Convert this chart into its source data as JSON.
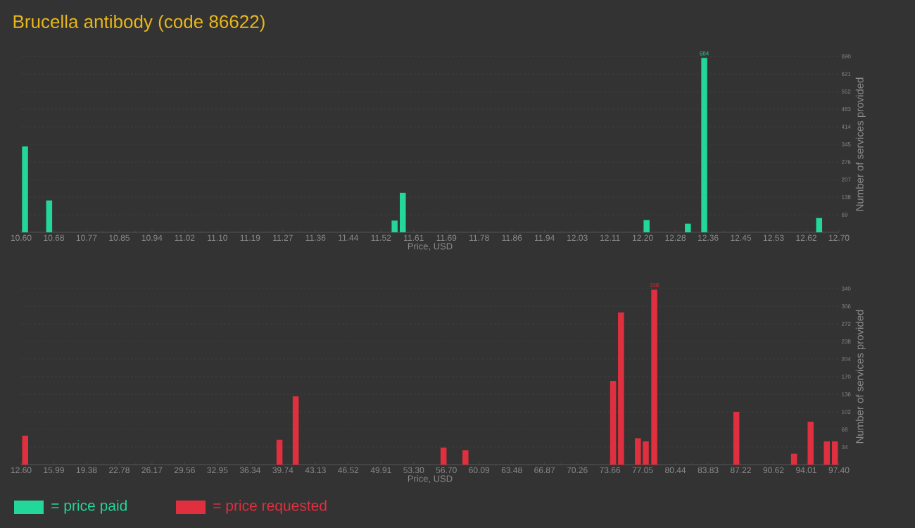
{
  "chart_data": [
    {
      "type": "bar",
      "title": "Brucella antibody (code 86622)",
      "xlabel": "Price, USD",
      "ylabel": "Number of services provided",
      "x": [
        10.61,
        10.672,
        11.559,
        11.58,
        12.206,
        12.312,
        12.354,
        12.649
      ],
      "series": [
        {
          "name": "= price paid",
          "color": "#23d69a",
          "values": [
            337,
            125,
            46,
            155,
            48,
            34,
            684,
            56
          ],
          "value_labels": [
            null,
            null,
            null,
            null,
            null,
            null,
            "684",
            null
          ]
        }
      ],
      "xlim": [
        10.6,
        12.7
      ],
      "xticks": [
        {
          "value": 10.6,
          "label": "10.60"
        },
        {
          "value": 10.684,
          "label": "10.68"
        },
        {
          "value": 10.768,
          "label": "10.77"
        },
        {
          "value": 10.852,
          "label": "10.85"
        },
        {
          "value": 10.936,
          "label": "10.94"
        },
        {
          "value": 11.02,
          "label": "11.02"
        },
        {
          "value": 11.104,
          "label": "11.10"
        },
        {
          "value": 11.188,
          "label": "11.19"
        },
        {
          "value": 11.272,
          "label": "11.27"
        },
        {
          "value": 11.356,
          "label": "11.36"
        },
        {
          "value": 11.44,
          "label": "11.44"
        },
        {
          "value": 11.524,
          "label": "11.52"
        },
        {
          "value": 11.608,
          "label": "11.61"
        },
        {
          "value": 11.692,
          "label": "11.69"
        },
        {
          "value": 11.776,
          "label": "11.78"
        },
        {
          "value": 11.86,
          "label": "11.86"
        },
        {
          "value": 11.944,
          "label": "11.94"
        },
        {
          "value": 12.028,
          "label": "12.03"
        },
        {
          "value": 12.112,
          "label": "12.11"
        },
        {
          "value": 12.196,
          "label": "12.20"
        },
        {
          "value": 12.28,
          "label": "12.28"
        },
        {
          "value": 12.364,
          "label": "12.36"
        },
        {
          "value": 12.448,
          "label": "12.45"
        },
        {
          "value": 12.532,
          "label": "12.53"
        },
        {
          "value": 12.616,
          "label": "12.62"
        },
        {
          "value": 12.7,
          "label": "12.70"
        }
      ],
      "ylim": [
        0,
        690
      ],
      "yticks": [
        69,
        138,
        207,
        276,
        345,
        414,
        483,
        552,
        621,
        690
      ],
      "grid": "y",
      "legend": "bottom left"
    },
    {
      "type": "bar",
      "xlabel": "Price, USD",
      "ylabel": "Number of services provided",
      "x": [
        13.02,
        39.39,
        41.07,
        56.4,
        58.67,
        73.98,
        74.8,
        76.55,
        77.37,
        78.25,
        86.76,
        92.74,
        94.46,
        96.14,
        96.98
      ],
      "series": [
        {
          "name": "= price requested",
          "color": "#e0303f",
          "values": [
            56,
            48,
            132,
            33,
            28,
            162,
            294,
            51,
            45,
            338,
            102,
            21,
            83,
            45,
            45
          ],
          "value_labels": [
            null,
            null,
            null,
            null,
            null,
            null,
            null,
            null,
            null,
            "338",
            null,
            null,
            null,
            null,
            null
          ]
        }
      ],
      "xlim": [
        12.6,
        97.4
      ],
      "xticks": [
        {
          "value": 12.6,
          "label": "12.60"
        },
        {
          "value": 15.992,
          "label": "15.99"
        },
        {
          "value": 19.384,
          "label": "19.38"
        },
        {
          "value": 22.776,
          "label": "22.78"
        },
        {
          "value": 26.168,
          "label": "26.17"
        },
        {
          "value": 29.56,
          "label": "29.56"
        },
        {
          "value": 32.952,
          "label": "32.95"
        },
        {
          "value": 36.344,
          "label": "36.34"
        },
        {
          "value": 39.736,
          "label": "39.74"
        },
        {
          "value": 43.128,
          "label": "43.13"
        },
        {
          "value": 46.52,
          "label": "46.52"
        },
        {
          "value": 49.912,
          "label": "49.91"
        },
        {
          "value": 53.304,
          "label": "53.30"
        },
        {
          "value": 56.696,
          "label": "56.70"
        },
        {
          "value": 60.088,
          "label": "60.09"
        },
        {
          "value": 63.48,
          "label": "63.48"
        },
        {
          "value": 66.872,
          "label": "66.87"
        },
        {
          "value": 70.264,
          "label": "70.26"
        },
        {
          "value": 73.656,
          "label": "73.66"
        },
        {
          "value": 77.048,
          "label": "77.05"
        },
        {
          "value": 80.44,
          "label": "80.44"
        },
        {
          "value": 83.832,
          "label": "83.83"
        },
        {
          "value": 87.224,
          "label": "87.22"
        },
        {
          "value": 90.616,
          "label": "90.62"
        },
        {
          "value": 94.008,
          "label": "94.01"
        },
        {
          "value": 97.4,
          "label": "97.40"
        }
      ],
      "ylim": [
        0,
        340
      ],
      "yticks": [
        34,
        68,
        102,
        136,
        170,
        204,
        238,
        272,
        306,
        340
      ],
      "grid": "y",
      "legend": "bottom left"
    }
  ]
}
